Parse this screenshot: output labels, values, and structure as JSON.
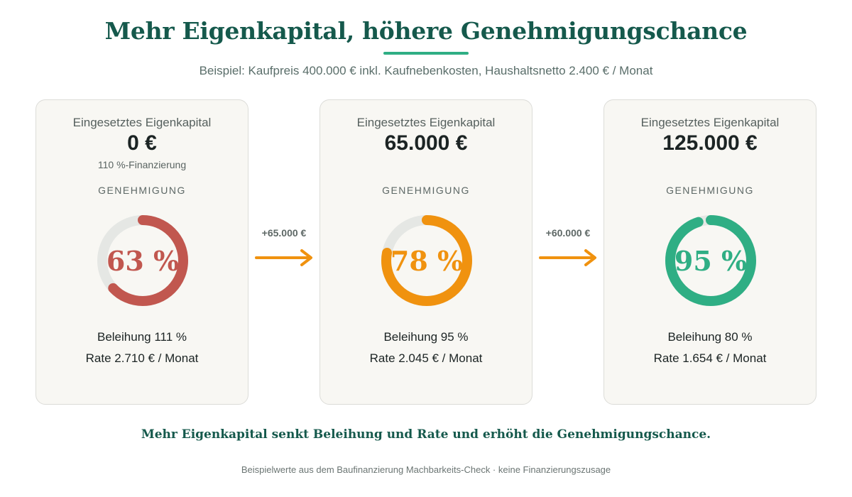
{
  "header": {
    "title": "Mehr Eigenkapital, höhere Genehmigungschance",
    "subtitle": "Beispiel: Kaufpreis 400.000 € inkl. Kaufnebenkosten, Haushaltsnetto 2.400 € / Monat"
  },
  "scenarios": [
    {
      "equity_label": "Eingesetztes Eigenkapital",
      "equity_value": "0 €",
      "note": "110 %-Finanzierung",
      "approval_label": "GENEHMIGUNG",
      "approval_text": "63 %",
      "approval_percent": 63,
      "color": "#c1574f",
      "ltv": "Beleihung 111 %",
      "rate": "Rate 2.710 € / Monat"
    },
    {
      "equity_label": "Eingesetztes Eigenkapital",
      "equity_value": "65.000 €",
      "note": "",
      "approval_label": "GENEHMIGUNG",
      "approval_text": "78 %",
      "approval_percent": 78,
      "color": "#f0920f",
      "ltv": "Beleihung 95 %",
      "rate": "Rate 2.045 € / Monat"
    },
    {
      "equity_label": "Eingesetztes Eigenkapital",
      "equity_value": "125.000 €",
      "note": "",
      "approval_label": "GENEHMIGUNG",
      "approval_text": "95 %",
      "approval_percent": 95,
      "color": "#2fae84",
      "ltv": "Beleihung 80 %",
      "rate": "Rate 1.654 € / Monat"
    }
  ],
  "steps": [
    {
      "label": "+65.000 €",
      "icon": "arrow-right-icon"
    },
    {
      "label": "+60.000 €",
      "icon": "arrow-right-icon"
    }
  ],
  "colors": {
    "track": "#e5e7e4",
    "arrow": "#f0920f",
    "heading": "#15594c",
    "accent": "#2fae84"
  },
  "conclusion": "Mehr Eigenkapital senkt Beleihung und Rate und erhöht die Genehmigungschance.",
  "footnote": "Beispielwerte aus dem Baufinanzierung Machbarkeits-Check · keine Finanzierungszusage"
}
